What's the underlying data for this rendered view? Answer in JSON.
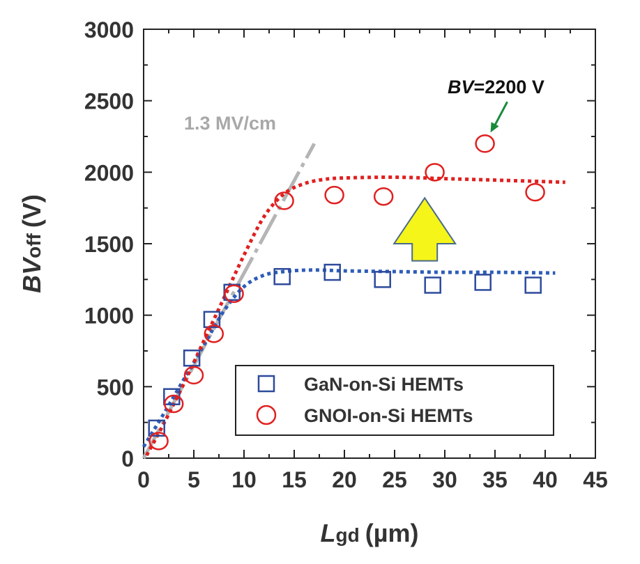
{
  "chart_data": {
    "type": "scatter",
    "xlabel_main": "L",
    "xlabel_sub": "gd",
    "xlabel_unit": "(µm)",
    "ylabel_main": "BV",
    "ylabel_sub": "off",
    "ylabel_unit": "(V)",
    "xlim": [
      0,
      45
    ],
    "ylim": [
      0,
      3000
    ],
    "xticks": [
      0,
      5,
      10,
      15,
      20,
      25,
      30,
      35,
      40,
      45
    ],
    "yticks": [
      0,
      500,
      1000,
      1500,
      2000,
      2500,
      3000
    ],
    "series": [
      {
        "name": "GaN-on-Si HEMTs",
        "marker": "square",
        "color": "#2d4a9c",
        "x": [
          1.3,
          2.8,
          4.8,
          6.8,
          8.8,
          13.8,
          18.8,
          23.8,
          28.8,
          33.8,
          38.8
        ],
        "y": [
          210,
          430,
          700,
          970,
          1160,
          1270,
          1300,
          1250,
          1210,
          1230,
          1210
        ]
      },
      {
        "name": "GNOI-on-Si HEMTs",
        "marker": "circle",
        "color": "#e02020",
        "x": [
          1.5,
          3.0,
          5.0,
          7.0,
          9.0,
          14.0,
          19.0,
          23.9,
          29.0,
          34.0,
          39.0
        ],
        "y": [
          120,
          380,
          580,
          870,
          1150,
          1800,
          1840,
          1830,
          2000,
          2200,
          1860
        ]
      }
    ],
    "fits": [
      {
        "color": "#2d5db8",
        "x": [
          0,
          2,
          4,
          6,
          8,
          10,
          12,
          14,
          16,
          18,
          20,
          25,
          30,
          35,
          41
        ],
        "y": [
          80,
          310,
          550,
          790,
          1030,
          1200,
          1280,
          1305,
          1315,
          1315,
          1310,
          1305,
          1300,
          1300,
          1295
        ]
      },
      {
        "color": "#e02020",
        "x": [
          0.3,
          2,
          4,
          6,
          8,
          10,
          12,
          14,
          16,
          18,
          20,
          25,
          30,
          35,
          42
        ],
        "y": [
          20,
          240,
          520,
          820,
          1120,
          1420,
          1690,
          1850,
          1920,
          1950,
          1960,
          1965,
          1955,
          1945,
          1930
        ]
      }
    ],
    "slope_line": {
      "label": "1.3 MV/cm",
      "color": "#b5b5b5",
      "x": [
        0,
        17
      ],
      "y": [
        0,
        2200
      ]
    },
    "annotation": {
      "prefix": "BV",
      "suffix": "=2200 V",
      "color": "#1a8a3a",
      "target_x": 34,
      "target_y": 2200
    },
    "arrow_color": "#f5f51a",
    "legend_position": "lower-right"
  }
}
